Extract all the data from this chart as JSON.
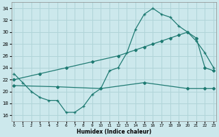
{
  "xlabel": "Humidex (Indice chaleur)",
  "xlim": [
    -0.3,
    23.3
  ],
  "ylim": [
    15.0,
    35.0
  ],
  "yticks": [
    16,
    18,
    20,
    22,
    24,
    26,
    28,
    30,
    32,
    34
  ],
  "xticks": [
    0,
    1,
    2,
    3,
    4,
    5,
    6,
    7,
    8,
    9,
    10,
    11,
    12,
    13,
    14,
    15,
    16,
    17,
    18,
    19,
    20,
    21,
    22,
    23
  ],
  "bg_color": "#cce8ec",
  "line_color": "#1e7a72",
  "grid_color": "#b0d4d8",
  "line1_x": [
    0,
    1,
    2,
    3,
    4,
    5,
    6,
    7,
    8,
    9,
    10,
    11,
    12,
    13,
    14,
    15,
    16,
    17,
    18,
    19,
    20,
    21,
    22,
    23
  ],
  "line1_y": [
    23,
    21.5,
    20,
    19,
    18.5,
    18.5,
    16.5,
    16.5,
    17.5,
    19.5,
    20.5,
    23.5,
    24,
    26.5,
    30.5,
    33,
    34,
    33,
    32.5,
    31,
    30,
    28.5,
    26.5,
    24
  ],
  "line2_x": [
    0,
    3,
    6,
    9,
    12,
    14,
    15,
    16,
    17,
    18,
    19,
    20,
    21,
    22,
    23
  ],
  "line2_y": [
    22,
    23,
    24,
    25,
    26,
    27,
    27.5,
    28,
    28.5,
    29,
    29.5,
    30,
    29,
    24,
    23.5
  ],
  "line3_x": [
    0,
    5,
    10,
    15,
    20,
    22,
    23
  ],
  "line3_y": [
    21.0,
    20.8,
    20.5,
    21.5,
    20.5,
    20.5,
    20.5
  ]
}
